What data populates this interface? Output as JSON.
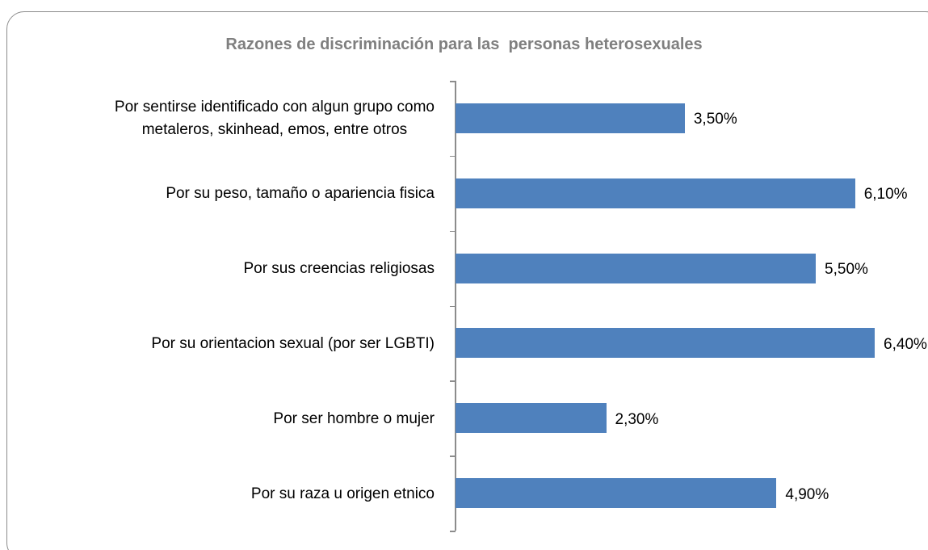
{
  "chart_data": {
    "type": "bar",
    "orientation": "horizontal",
    "title": "Razones de discriminación para las  personas heterosexuales",
    "categories": [
      "Por sentirse identificado con algun grupo como\nmetaleros, skinhead, emos, entre otros",
      "Por su peso, tamaño o apariencia fisica",
      "Por sus creencias religiosas",
      "Por su orientacion sexual (por ser LGBTI)",
      "Por ser hombre o mujer",
      "Por su raza u origen etnico"
    ],
    "values": [
      3.5,
      6.1,
      5.5,
      6.4,
      2.3,
      4.9
    ],
    "value_labels": [
      "3,50%",
      "6,10%",
      "5,50%",
      "6,40%",
      "2,30%",
      "4,90%"
    ],
    "color": "#4f81bd"
  }
}
